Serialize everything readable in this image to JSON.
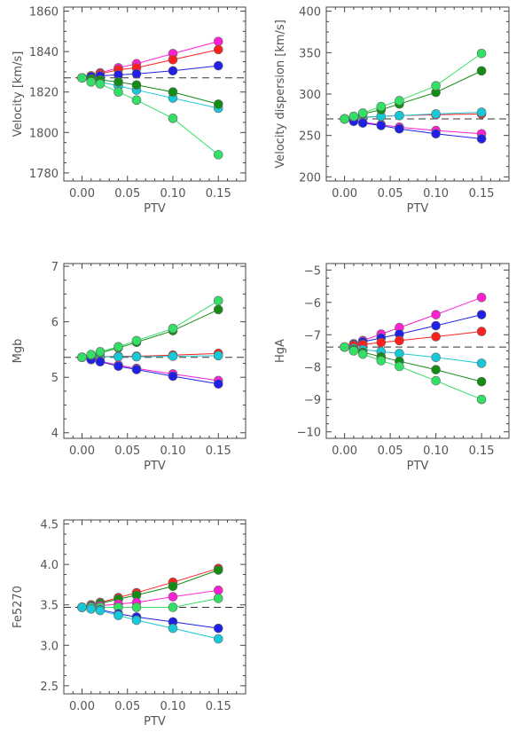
{
  "chart_data": [
    {
      "type": "line",
      "xlabel": "PTV",
      "ylabel": "Velocity [km/s]",
      "x": [
        0.0,
        0.01,
        0.02,
        0.04,
        0.06,
        0.1,
        0.15
      ],
      "xlim": [
        -0.02,
        0.18
      ],
      "ylim": [
        1776,
        1862
      ],
      "xticks": [
        0.0,
        0.05,
        0.1,
        0.15
      ],
      "xticklabels": [
        "0.00",
        "0.05",
        "0.10",
        "0.15"
      ],
      "yticks": [
        1780,
        1800,
        1820,
        1840,
        1860
      ],
      "yticklabels": [
        "1780",
        "1800",
        "1820",
        "1840",
        "1860"
      ],
      "reference": 1827,
      "series": [
        {
          "color": "#ff1fd2",
          "values": [
            1827,
            1828,
            1829.5,
            1832,
            1834,
            1839,
            1845
          ]
        },
        {
          "color": "#ff1f1f",
          "values": [
            1827,
            1828,
            1829,
            1831,
            1832,
            1836,
            1841
          ]
        },
        {
          "color": "#1f1fe6",
          "values": [
            1827,
            1827.5,
            1828,
            1828.5,
            1829,
            1830.5,
            1833
          ]
        },
        {
          "color": "#16c9d9",
          "values": [
            1827,
            1826,
            1825,
            1823,
            1821,
            1817,
            1812
          ]
        },
        {
          "color": "#138c13",
          "values": [
            1827,
            1826.5,
            1826,
            1825,
            1823.5,
            1820,
            1814
          ]
        },
        {
          "color": "#33e066",
          "values": [
            1827,
            1825,
            1824,
            1820,
            1816,
            1807,
            1789
          ]
        }
      ]
    },
    {
      "type": "line",
      "xlabel": "PTV",
      "ylabel": "Velocity dispersion [km/s]",
      "x": [
        0.0,
        0.01,
        0.02,
        0.04,
        0.06,
        0.1,
        0.15
      ],
      "xlim": [
        -0.02,
        0.18
      ],
      "ylim": [
        195,
        405
      ],
      "xticks": [
        0.0,
        0.05,
        0.1,
        0.15
      ],
      "xticklabels": [
        "0.00",
        "0.05",
        "0.10",
        "0.15"
      ],
      "yticks": [
        200,
        250,
        300,
        350,
        400
      ],
      "yticklabels": [
        "200",
        "250",
        "300",
        "350",
        "400"
      ],
      "reference": 270,
      "series": [
        {
          "color": "#ff1f1f",
          "values": [
            270,
            271,
            272,
            273,
            274,
            275,
            276
          ]
        },
        {
          "color": "#16c9d9",
          "values": [
            270,
            271,
            272,
            273,
            274,
            276,
            278
          ]
        },
        {
          "color": "#ff1fd2",
          "values": [
            270,
            268,
            266,
            263,
            260,
            256,
            252
          ]
        },
        {
          "color": "#1f1fe6",
          "values": [
            270,
            267,
            265,
            262,
            258,
            252,
            246
          ]
        },
        {
          "color": "#138c13",
          "values": [
            270,
            273,
            276,
            281,
            288,
            302,
            328
          ]
        },
        {
          "color": "#33e066",
          "values": [
            270,
            273,
            277,
            285,
            292,
            310,
            349
          ]
        }
      ]
    },
    {
      "type": "line",
      "xlabel": "PTV",
      "ylabel": "Mgb",
      "x": [
        0.0,
        0.01,
        0.02,
        0.04,
        0.06,
        0.1,
        0.15
      ],
      "xlim": [
        -0.02,
        0.18
      ],
      "ylim": [
        3.9,
        7.05
      ],
      "xticks": [
        0.0,
        0.05,
        0.1,
        0.15
      ],
      "xticklabels": [
        "0.00",
        "0.05",
        "0.10",
        "0.15"
      ],
      "yticks": [
        4,
        5,
        6,
        7
      ],
      "yticklabels": [
        "4",
        "5",
        "6",
        "7"
      ],
      "reference": 5.36,
      "series": [
        {
          "color": "#ff1f1f",
          "values": [
            5.36,
            5.37,
            5.37,
            5.38,
            5.38,
            5.4,
            5.43
          ]
        },
        {
          "color": "#16c9d9",
          "values": [
            5.36,
            5.36,
            5.37,
            5.37,
            5.37,
            5.38,
            5.39
          ]
        },
        {
          "color": "#ff1fd2",
          "values": [
            5.36,
            5.32,
            5.29,
            5.22,
            5.16,
            5.06,
            4.94
          ]
        },
        {
          "color": "#1f1fe6",
          "values": [
            5.36,
            5.32,
            5.28,
            5.2,
            5.14,
            5.02,
            4.88
          ]
        },
        {
          "color": "#138c13",
          "values": [
            5.36,
            5.4,
            5.44,
            5.53,
            5.63,
            5.84,
            6.22
          ]
        },
        {
          "color": "#33e066",
          "values": [
            5.36,
            5.41,
            5.46,
            5.55,
            5.66,
            5.88,
            6.38
          ]
        }
      ]
    },
    {
      "type": "line",
      "xlabel": "PTV",
      "ylabel": "HgA",
      "x": [
        0.0,
        0.01,
        0.02,
        0.04,
        0.06,
        0.1,
        0.15
      ],
      "xlim": [
        -0.02,
        0.18
      ],
      "ylim": [
        -10.2,
        -4.8
      ],
      "xticks": [
        0.0,
        0.05,
        0.1,
        0.15
      ],
      "xticklabels": [
        "0.00",
        "0.05",
        "0.10",
        "0.15"
      ],
      "yticks": [
        -10,
        -9,
        -8,
        -7,
        -6,
        -5
      ],
      "yticklabels": [
        "−10",
        "−9",
        "−8",
        "−7",
        "−6",
        "−5"
      ],
      "reference": -7.38,
      "series": [
        {
          "color": "#ff1fd2",
          "values": [
            -7.38,
            -7.28,
            -7.18,
            -6.98,
            -6.78,
            -6.38,
            -5.85
          ]
        },
        {
          "color": "#1f1fe6",
          "values": [
            -7.38,
            -7.3,
            -7.22,
            -7.1,
            -6.98,
            -6.72,
            -6.38
          ]
        },
        {
          "color": "#ff1f1f",
          "values": [
            -7.38,
            -7.33,
            -7.3,
            -7.24,
            -7.18,
            -7.06,
            -6.9
          ]
        },
        {
          "color": "#16c9d9",
          "values": [
            -7.38,
            -7.42,
            -7.46,
            -7.52,
            -7.58,
            -7.7,
            -7.88
          ]
        },
        {
          "color": "#138c13",
          "values": [
            -7.38,
            -7.46,
            -7.54,
            -7.68,
            -7.82,
            -8.08,
            -8.45
          ]
        },
        {
          "color": "#33e066",
          "values": [
            -7.38,
            -7.5,
            -7.6,
            -7.8,
            -7.98,
            -8.42,
            -9.0
          ]
        }
      ]
    },
    {
      "type": "line",
      "xlabel": "PTV",
      "ylabel": "Fe5270",
      "x": [
        0.0,
        0.01,
        0.02,
        0.04,
        0.06,
        0.1,
        0.15
      ],
      "xlim": [
        -0.02,
        0.18
      ],
      "ylim": [
        2.4,
        4.55
      ],
      "xticks": [
        0.0,
        0.05,
        0.1,
        0.15
      ],
      "xticklabels": [
        "0.00",
        "0.05",
        "0.10",
        "0.15"
      ],
      "yticks": [
        2.5,
        3.0,
        3.5,
        4.0,
        4.5
      ],
      "yticklabels": [
        "2.5",
        "3.0",
        "3.5",
        "4.0",
        "4.5"
      ],
      "reference": 3.47,
      "series": [
        {
          "color": "#ff1f1f",
          "values": [
            3.47,
            3.5,
            3.53,
            3.59,
            3.65,
            3.78,
            3.95
          ]
        },
        {
          "color": "#138c13",
          "values": [
            3.47,
            3.49,
            3.52,
            3.57,
            3.62,
            3.73,
            3.93
          ]
        },
        {
          "color": "#ff1fd2",
          "values": [
            3.47,
            3.48,
            3.49,
            3.51,
            3.53,
            3.6,
            3.68
          ]
        },
        {
          "color": "#33e066",
          "values": [
            3.47,
            3.47,
            3.47,
            3.47,
            3.47,
            3.47,
            3.58
          ]
        },
        {
          "color": "#1f1fe6",
          "values": [
            3.47,
            3.45,
            3.44,
            3.39,
            3.35,
            3.29,
            3.21
          ]
        },
        {
          "color": "#16c9d9",
          "values": [
            3.47,
            3.45,
            3.43,
            3.37,
            3.31,
            3.21,
            3.08
          ]
        }
      ]
    }
  ]
}
